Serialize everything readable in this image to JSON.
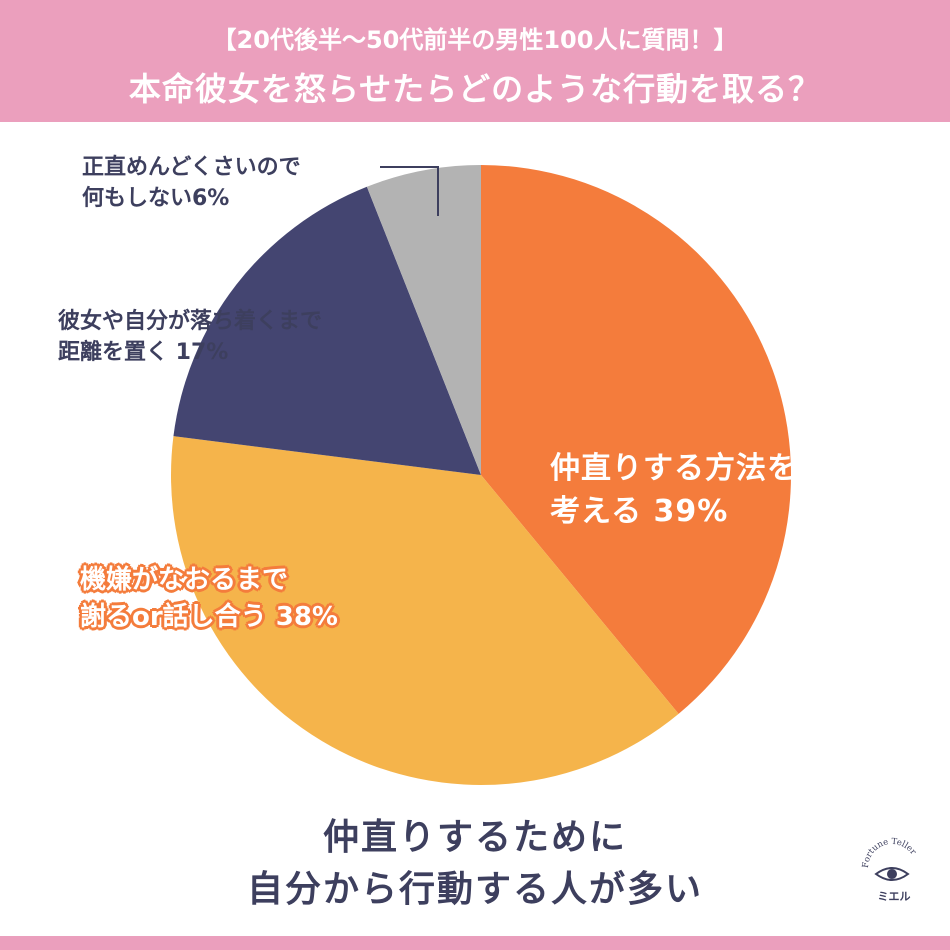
{
  "header": {
    "subtitle": "【20代後半〜50代前半の男性100人に質問！】",
    "title": "本命彼女を怒らせたらどのような行動を取る？"
  },
  "chart_data": {
    "type": "pie",
    "title": "本命彼女を怒らせたらどのような行動を取る？",
    "unit": "%",
    "slices": [
      {
        "label_lines": [
          "仲直りする方法を",
          "考える 39%"
        ],
        "value": 39,
        "color": "#f47c3c"
      },
      {
        "label_lines": [
          "機嫌がなおるまで",
          "謝るor話し合う 38%"
        ],
        "value": 38,
        "color": "#f5b44b"
      },
      {
        "label_lines": [
          "彼女や自分が落ち着くまで",
          "距離を置く 17%"
        ],
        "value": 17,
        "color": "#444571"
      },
      {
        "label_lines": [
          "正直めんどくさいので",
          "何もしない6%"
        ],
        "value": 6,
        "color": "#b3b3b3"
      }
    ]
  },
  "conclusion": {
    "line1": "仲直りするために",
    "line2": "自分から行動する人が多い"
  },
  "logo": {
    "arc_text": "Fortune Teller",
    "name": "ミエル",
    "color": "#c8a868"
  }
}
